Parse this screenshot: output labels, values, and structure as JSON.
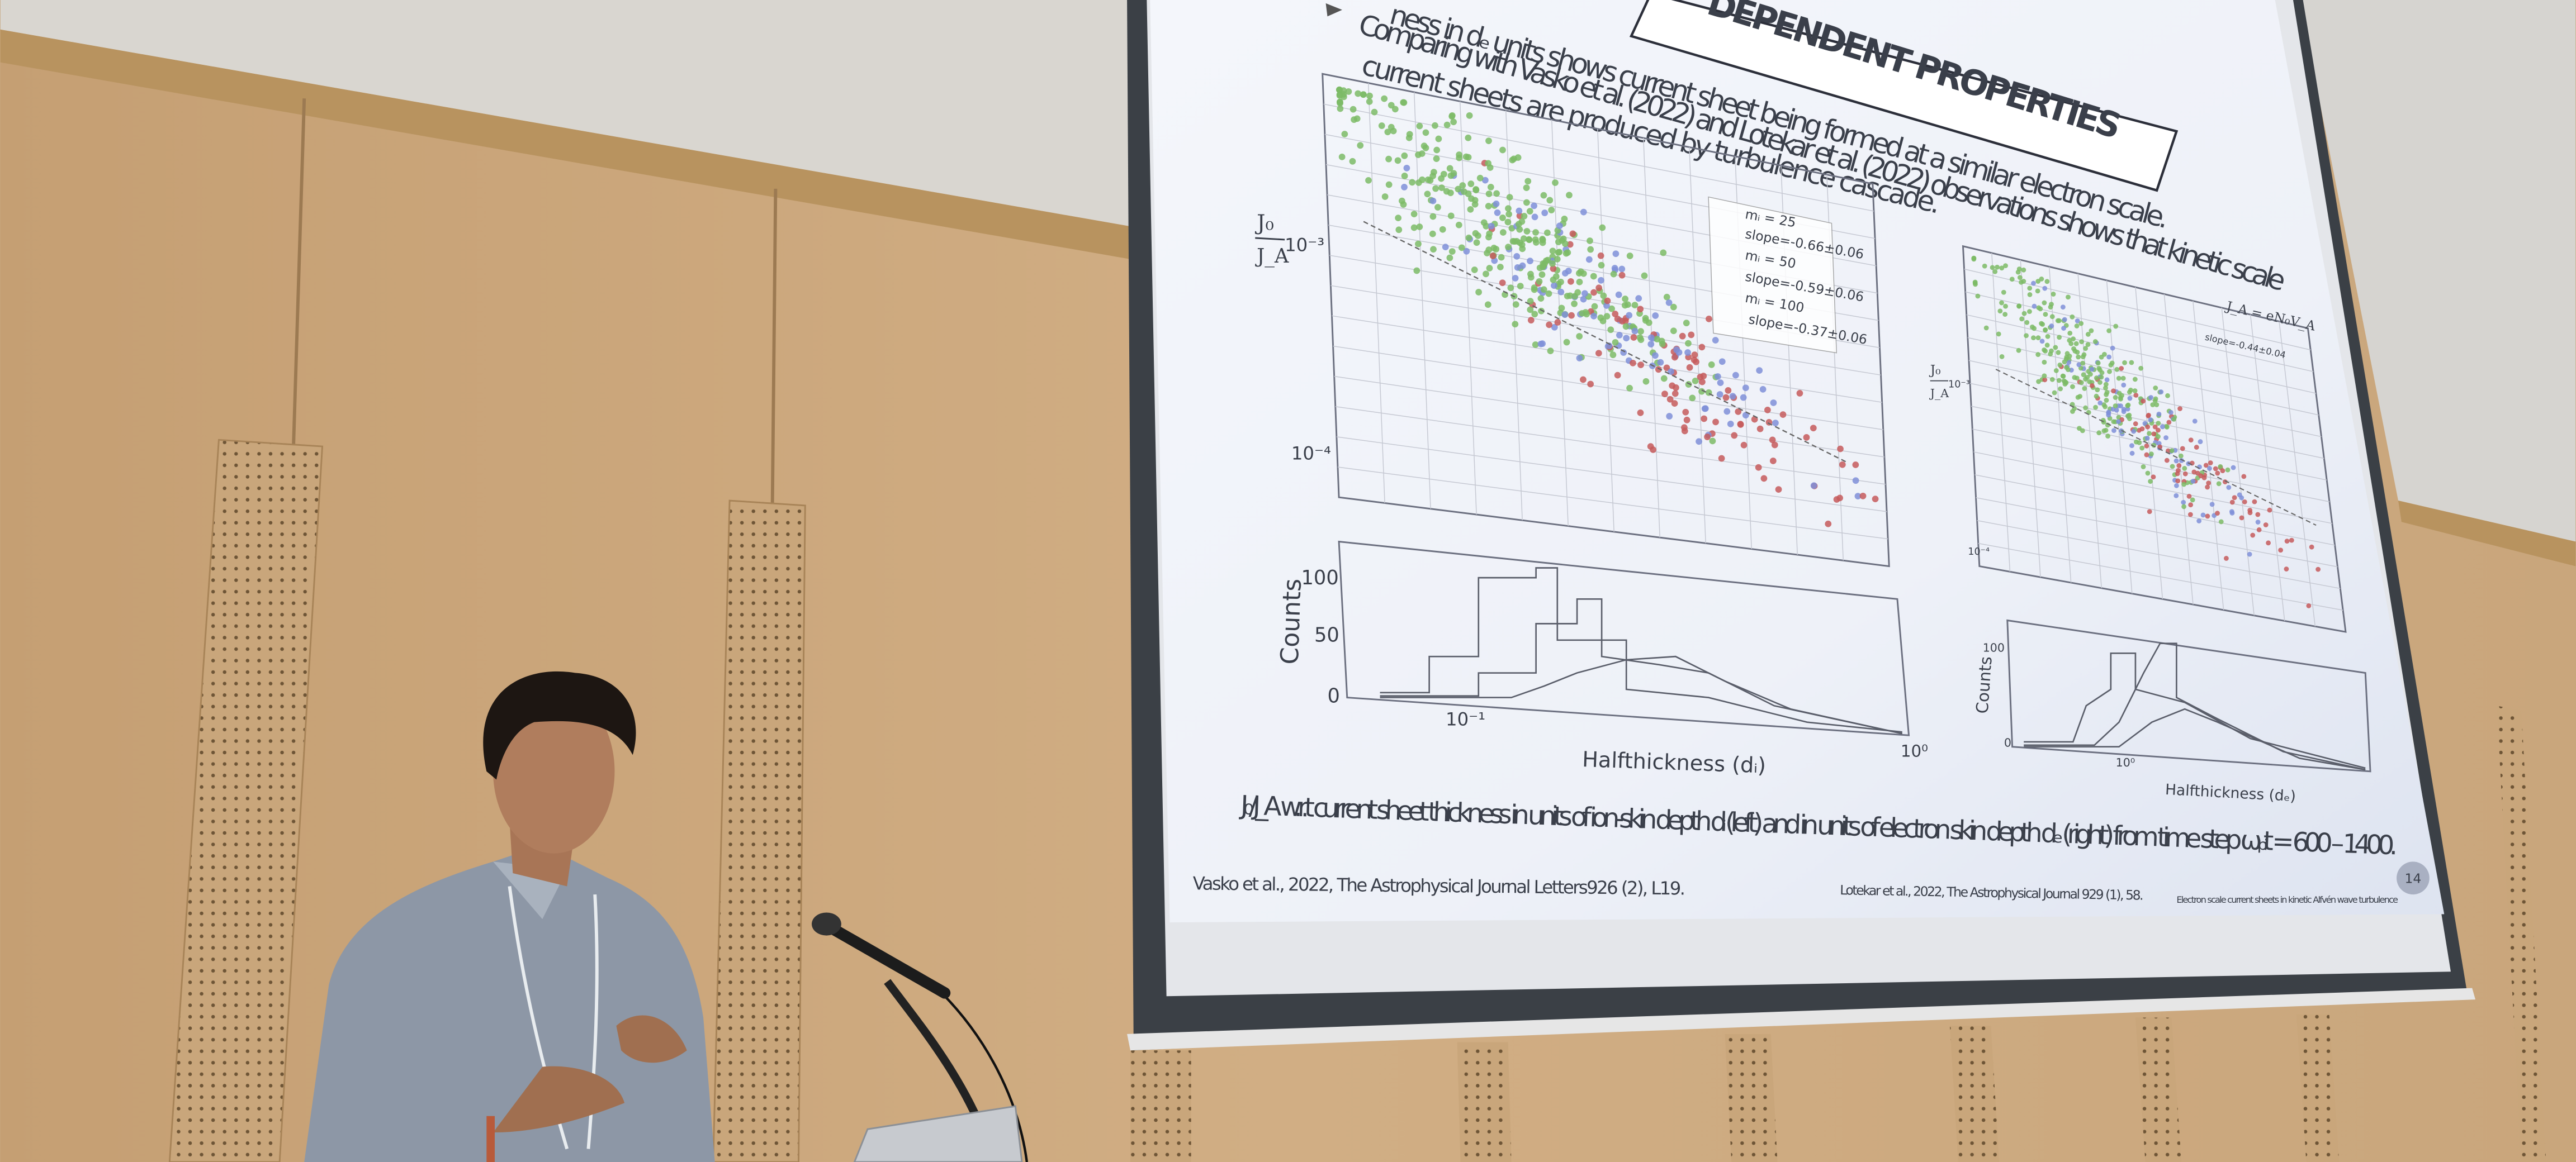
{
  "slide": {
    "title": "DEPENDENT PROPERTIES",
    "bullets": [
      "ness in dₑ units shows current sheet being formed at a similar electron scale.",
      "Comparing with Vasko et al. (2022)  and Lotekar et al. (2022) observations shows that kinetic scale",
      "current sheets are produced by turbulence cascade."
    ],
    "left_plot": {
      "y_label_top": "J₀",
      "y_label_bottom": "J_A",
      "y_ticks": [
        "10⁻³",
        "10⁻⁴"
      ],
      "legend": [
        "mᵢ = 25",
        "slope=-0.66±0.06",
        "mᵢ = 50",
        "slope=-0.59±0.06",
        "mᵢ = 100",
        "slope=-0.37±0.06"
      ],
      "hist_y_label": "Counts",
      "hist_y_ticks": [
        "100",
        "50",
        "0"
      ],
      "hist_x_ticks": [
        "10⁻¹",
        "10⁰"
      ],
      "x_label": "Halfthickness (dᵢ)"
    },
    "right_plot": {
      "y_label_top": "J₀",
      "y_label_bottom": "J_A",
      "y_ticks": [
        "10⁻³",
        "10⁻⁴"
      ],
      "legend": [
        "J_A = eN₀V_A",
        "slope=-0.44±0.04"
      ],
      "hist_y_label": "Counts",
      "hist_y_ticks": [
        "100",
        "0"
      ],
      "hist_x_ticks": [
        "10⁰"
      ],
      "x_label": "Halfthickness (dₑ)"
    },
    "caption": "J₀/J_A w.r.t current sheet thickness in units of ion-skin depth dᵢ (left) and in units of electron skin depth dₑ (right) from time step ωₚᵢt = 600 – 1400.",
    "references": [
      "Vasko et al., 2022, The Astrophysical Journal Letters926 (2), L19.",
      "Lotekar et al., 2022, The Astrophysical Journal 929 (1), 58."
    ],
    "footer": "Electron scale current sheets in kinetic Alfvén wave turbulence",
    "page_number": "14"
  }
}
